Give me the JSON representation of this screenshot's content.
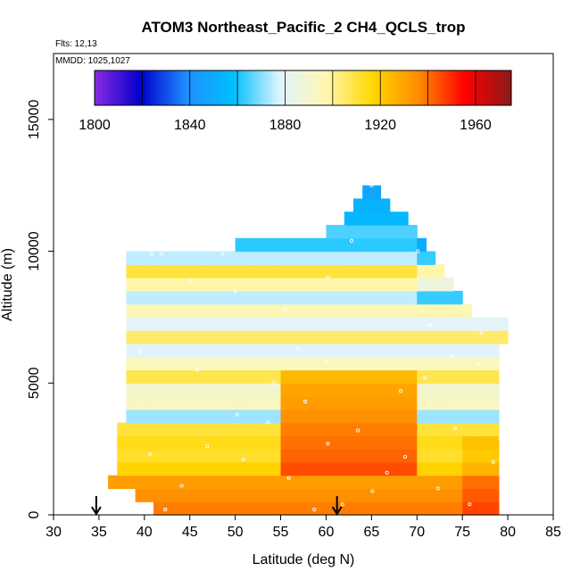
{
  "chart_data": {
    "type": "heatmap",
    "title": "ATOM3 Northeast_Pacific_2 CH4_QCLS_trop",
    "annotations": {
      "flights": "Flts: 12,13",
      "dates": "MMDD: 1025,1027"
    },
    "xlabel": "Latitude (deg N)",
    "ylabel": "Altitude (m)",
    "xlim": [
      30,
      85
    ],
    "ylim": [
      0,
      17500
    ],
    "x_ticks": [
      30,
      35,
      40,
      45,
      50,
      55,
      60,
      65,
      70,
      75,
      80,
      85
    ],
    "y_ticks": [
      0,
      5000,
      10000,
      15000
    ],
    "colorbar": {
      "range": [
        1800,
        1975
      ],
      "tick_values": [
        1800,
        1840,
        1880,
        1920,
        1960
      ],
      "colors": [
        "#8a2be2",
        "#0000cd",
        "#1e90ff",
        "#00bfff",
        "#e0f4ff",
        "#fff7b0",
        "#ffd700",
        "#ff8c00",
        "#ff0000",
        "#8b1a1a"
      ]
    },
    "arrow_latitudes": [
      34.7,
      61.2
    ],
    "bins": {
      "lat_start": 36,
      "lat_step": 1,
      "alt_step": 500
    },
    "column_top_km": [
      1.5,
      3.5,
      10.0,
      10.0,
      10.0,
      10.0,
      10.0,
      10.0,
      10.0,
      10.0,
      10.0,
      10.0,
      10.0,
      10.0,
      10.5,
      10.5,
      10.5,
      10.5,
      10.5,
      10.5,
      10.5,
      10.5,
      10.5,
      10.5,
      11.0,
      11.0,
      11.5,
      12.0,
      12.5,
      12.5,
      12.0,
      11.5,
      11.5,
      11.0,
      10.5,
      10.0,
      9.5,
      9.0,
      8.5,
      8.0,
      7.5,
      7.5,
      7.5,
      7.5
    ],
    "column_base_km": [
      1.0,
      1.0,
      1.0,
      0.5,
      0.5,
      0,
      0,
      0,
      0,
      0,
      0,
      0,
      0,
      0,
      0,
      0,
      0,
      0,
      0,
      0,
      0,
      0,
      0,
      0,
      0,
      0,
      0,
      0,
      0,
      0,
      0,
      0,
      0,
      0,
      0,
      0,
      0,
      0,
      0,
      0,
      0,
      0,
      0,
      6.5
    ],
    "band_values": [
      1938,
      1935,
      1932,
      1918,
      1912,
      1914,
      1910,
      1872,
      1893,
      1890,
      1908,
      1894,
      1878,
      1905,
      1880,
      1896,
      1875,
      1898,
      1910,
      1875,
      1862,
      1865,
      1855,
      1853,
      1848
    ],
    "orange_zone": {
      "lat_range": [
        55,
        70
      ],
      "alt_range_km": [
        1.5,
        5.5
      ],
      "values": [
        1945,
        1942,
        1940,
        1938,
        1935,
        1932,
        1930,
        1925
      ]
    },
    "sample_points": [
      [
        40.8,
        9.9
      ],
      [
        41.9,
        9.9
      ],
      [
        45.0,
        8.9
      ],
      [
        48.6,
        9.9
      ],
      [
        50.0,
        8.5
      ],
      [
        53.0,
        10.6
      ],
      [
        55.5,
        7.8
      ],
      [
        60.2,
        9.0
      ],
      [
        62.8,
        10.4
      ],
      [
        65.0,
        12.5
      ],
      [
        66.3,
        12.2
      ],
      [
        70.1,
        10.0
      ],
      [
        71.4,
        7.2
      ],
      [
        73.3,
        9.4
      ],
      [
        77.1,
        6.9
      ],
      [
        39.5,
        6.2
      ],
      [
        45.8,
        5.5
      ],
      [
        50.2,
        3.8
      ],
      [
        54.2,
        5.0
      ],
      [
        56.9,
        6.3
      ],
      [
        57.7,
        4.3
      ],
      [
        60.2,
        2.7
      ],
      [
        61.8,
        0.4
      ],
      [
        63.5,
        3.2
      ],
      [
        66.7,
        1.6
      ],
      [
        70.9,
        5.2
      ],
      [
        74.2,
        3.3
      ],
      [
        76.8,
        5.7
      ],
      [
        79.2,
        2.9
      ],
      [
        40.6,
        2.3
      ],
      [
        44.1,
        1.1
      ],
      [
        46.9,
        2.6
      ],
      [
        50.9,
        2.1
      ],
      [
        55.9,
        1.4
      ],
      [
        58.7,
        0.2
      ],
      [
        65.1,
        0.9
      ],
      [
        68.7,
        2.2
      ],
      [
        72.3,
        1.0
      ],
      [
        75.8,
        0.4
      ],
      [
        78.4,
        2.0
      ],
      [
        42.3,
        0.2
      ],
      [
        53.6,
        3.5
      ],
      [
        60.0,
        5.8
      ],
      [
        68.2,
        4.7
      ],
      [
        73.8,
        6.0
      ]
    ]
  }
}
